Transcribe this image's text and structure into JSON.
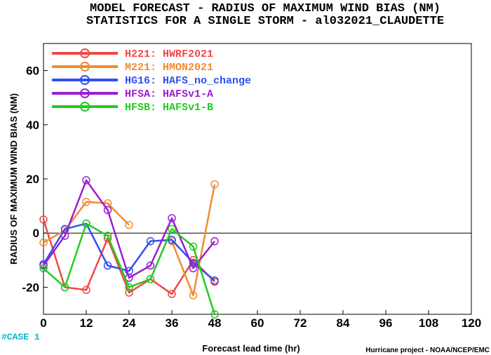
{
  "chart_data": {
    "type": "line",
    "title": [
      "MODEL FORECAST - RADIUS OF MAXIMUM WIND BIAS (NM)",
      "STATISTICS FOR A SINGLE STORM - al032021_CLAUDETTE"
    ],
    "xlabel": "Forecast lead time (hr)",
    "ylabel": "RADIUS OF MAXIMUM WIND BIAS (NM)",
    "xlim": [
      0,
      120
    ],
    "ylim": [
      -30,
      70
    ],
    "xticks": [
      0,
      12,
      24,
      36,
      48,
      60,
      72,
      84,
      96,
      108,
      120
    ],
    "yticks": [
      -20,
      0,
      20,
      40,
      60
    ],
    "zero_line": true,
    "legend_position": "top-left",
    "case_label": "#CASE  1",
    "footer": "Hurricane project - NOAA/NCEP/EMC",
    "series": [
      {
        "name": "H221: HWRF2021",
        "color": "#f04848",
        "x": [
          0,
          6,
          12,
          18,
          24,
          30,
          36,
          42,
          48
        ],
        "y": [
          5,
          -20,
          -21,
          -2,
          -22,
          -17,
          -22.5,
          -10,
          -18
        ]
      },
      {
        "name": "M221: HMON2021",
        "color": "#f08c30",
        "x": [
          0,
          6,
          12,
          18,
          24,
          30,
          36,
          42,
          48
        ],
        "y": [
          -3.5,
          1,
          11.5,
          11,
          3,
          null,
          -3,
          -23,
          18
        ]
      },
      {
        "name": "HG16: HAFS_no_change",
        "color": "#3050f0",
        "x": [
          0,
          6,
          12,
          18,
          24,
          30,
          36,
          42,
          48
        ],
        "y": [
          -11.5,
          1.5,
          3.5,
          -12,
          -14,
          -3,
          -2.5,
          -11,
          -17.5
        ]
      },
      {
        "name": "HFSA: HAFSv1-A",
        "color": "#9b1fd0",
        "x": [
          0,
          6,
          12,
          18,
          24,
          30,
          36,
          42,
          48
        ],
        "y": [
          -12,
          -1,
          19.5,
          8.5,
          -16.5,
          -12,
          5.5,
          -13,
          -3
        ]
      },
      {
        "name": "HFSB: HAFSv1-B",
        "color": "#22cc22",
        "x": [
          0,
          6,
          12,
          18,
          24,
          30,
          36,
          42,
          48
        ],
        "y": [
          -13,
          -20,
          3.5,
          -1,
          -20,
          -17,
          1.5,
          -5,
          -30
        ]
      }
    ]
  }
}
